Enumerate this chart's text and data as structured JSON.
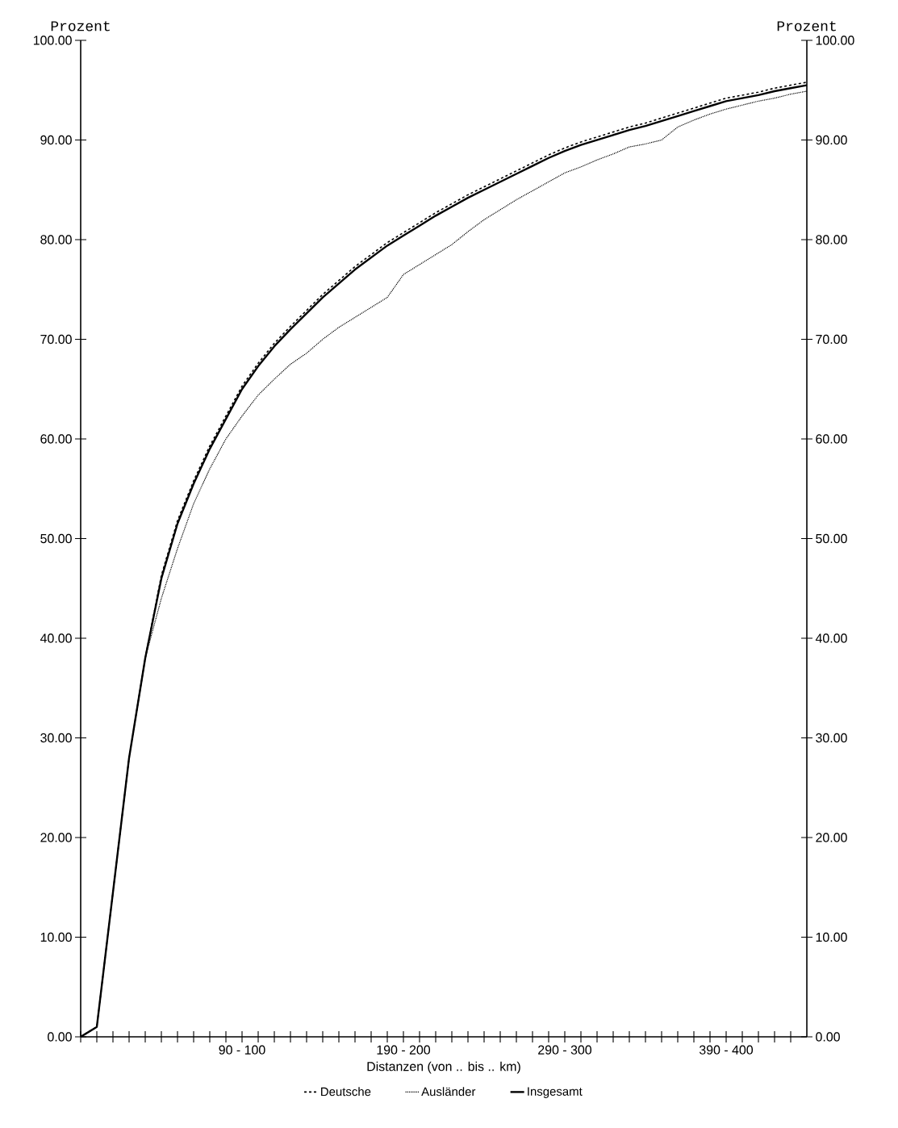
{
  "chart_data": {
    "type": "line",
    "xlabel": "Distanzen (von .. bis .. km)",
    "ylabel": "Prozent",
    "y2label": "Prozent",
    "categories": [
      null,
      null,
      null,
      null,
      null,
      null,
      null,
      null,
      null,
      null,
      "90 - 100",
      null,
      null,
      null,
      null,
      null,
      null,
      null,
      null,
      null,
      "190 - 200",
      null,
      null,
      null,
      null,
      null,
      null,
      null,
      null,
      null,
      "290 - 300",
      null,
      null,
      null,
      null,
      null,
      null,
      null,
      null,
      null,
      "390 - 400",
      null,
      null,
      null,
      null,
      null
    ],
    "series": [
      {
        "name": "Deutsche",
        "color": "#000000",
        "line_style": "dashed",
        "values": [
          0,
          1.0,
          14.5,
          28,
          38,
          46.3,
          51.8,
          55.8,
          59.3,
          62.3,
          65.3,
          67.6,
          69.6,
          71.3,
          72.9,
          74.5,
          75.9,
          77.3,
          78.5,
          79.7,
          80.7,
          81.7,
          82.7,
          83.6,
          84.5,
          85.3,
          86.1,
          86.9,
          87.7,
          88.5,
          89.2,
          89.8,
          90.3,
          90.8,
          91.3,
          91.7,
          92.2,
          92.7,
          93.2,
          93.7,
          94.2,
          94.5,
          94.8,
          95.2,
          95.5,
          95.8
        ]
      },
      {
        "name": "Ausländer",
        "color": "#000000",
        "line_style": "dotted",
        "values": [
          0,
          1.0,
          14.5,
          28,
          38,
          44,
          49,
          53.5,
          57,
          60,
          62.3,
          64.4,
          66,
          67.5,
          68.6,
          70,
          71.2,
          72.2,
          73.2,
          74.2,
          76.5,
          77.5,
          78.5,
          79.5,
          80.8,
          82,
          83,
          84,
          84.9,
          85.8,
          86.7,
          87.3,
          88,
          88.6,
          89.3,
          89.6,
          90,
          91.3,
          92,
          92.6,
          93.1,
          93.5,
          93.9,
          94.2,
          94.6,
          94.9
        ]
      },
      {
        "name": "Insgesamt",
        "color": "#000000",
        "line_style": "solid",
        "values": [
          0,
          1.0,
          14.5,
          28,
          38,
          46,
          51.5,
          55.5,
          59,
          62,
          65,
          67.3,
          69.3,
          71,
          72.6,
          74.2,
          75.6,
          77,
          78.2,
          79.4,
          80.4,
          81.4,
          82.4,
          83.3,
          84.2,
          85,
          85.8,
          86.6,
          87.4,
          88.2,
          88.9,
          89.5,
          90,
          90.5,
          91,
          91.4,
          91.9,
          92.4,
          92.9,
          93.4,
          93.9,
          94.2,
          94.5,
          94.9,
          95.2,
          95.5
        ]
      }
    ],
    "ylim": [
      0,
      100
    ],
    "yticks": [
      {
        "value": 0,
        "label": "0.00"
      },
      {
        "value": 10,
        "label": "10.00"
      },
      {
        "value": 20,
        "label": "20.00"
      },
      {
        "value": 30,
        "label": "30.00"
      },
      {
        "value": 40,
        "label": "40.00"
      },
      {
        "value": 50,
        "label": "50.00"
      },
      {
        "value": 60,
        "label": "60.00"
      },
      {
        "value": 70,
        "label": "70.00"
      },
      {
        "value": 80,
        "label": "80.00"
      },
      {
        "value": 90,
        "label": "90.00"
      },
      {
        "value": 100,
        "label": "100.00"
      }
    ],
    "y2lim": [
      0,
      100
    ],
    "y2ticks": [
      {
        "value": 0,
        "label": "0.00"
      },
      {
        "value": 10,
        "label": "10.00"
      },
      {
        "value": 20,
        "label": "20.00"
      },
      {
        "value": 30,
        "label": "30.00"
      },
      {
        "value": 40,
        "label": "40.00"
      },
      {
        "value": 50,
        "label": "50.00"
      },
      {
        "value": 60,
        "label": "60.00"
      },
      {
        "value": 70,
        "label": "70.00"
      },
      {
        "value": 80,
        "label": "80.00"
      },
      {
        "value": 90,
        "label": "90.00"
      },
      {
        "value": 100,
        "label": "100.00"
      }
    ],
    "legend": "bottom",
    "grid": false,
    "marker": "none"
  }
}
